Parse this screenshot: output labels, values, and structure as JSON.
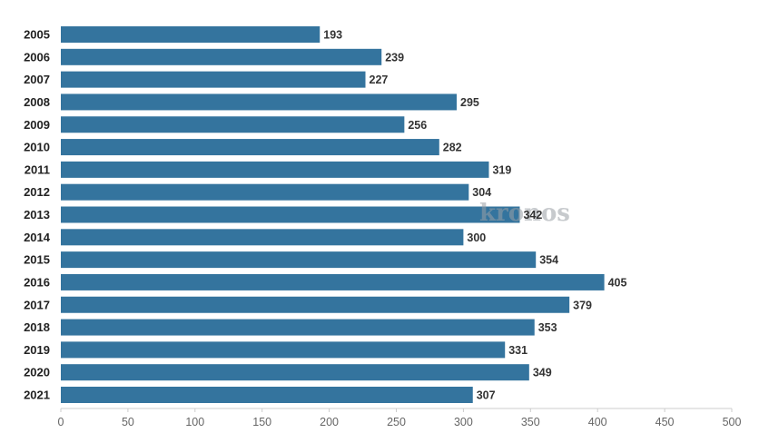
{
  "chart_data": {
    "type": "bar",
    "orientation": "horizontal",
    "categories": [
      "2005",
      "2006",
      "2007",
      "2008",
      "2009",
      "2010",
      "2011",
      "2012",
      "2013",
      "2014",
      "2015",
      "2016",
      "2017",
      "2018",
      "2019",
      "2020",
      "2021"
    ],
    "values": [
      193,
      239,
      227,
      295,
      256,
      282,
      319,
      304,
      342,
      300,
      354,
      405,
      379,
      353,
      331,
      349,
      307
    ],
    "xlim": [
      0,
      500
    ],
    "x_ticks": [
      0,
      50,
      100,
      150,
      200,
      250,
      300,
      350,
      400,
      450,
      500
    ],
    "bar_color": "#34749e",
    "grid": false,
    "data_labels": true
  },
  "watermark": {
    "text": "kronos"
  }
}
